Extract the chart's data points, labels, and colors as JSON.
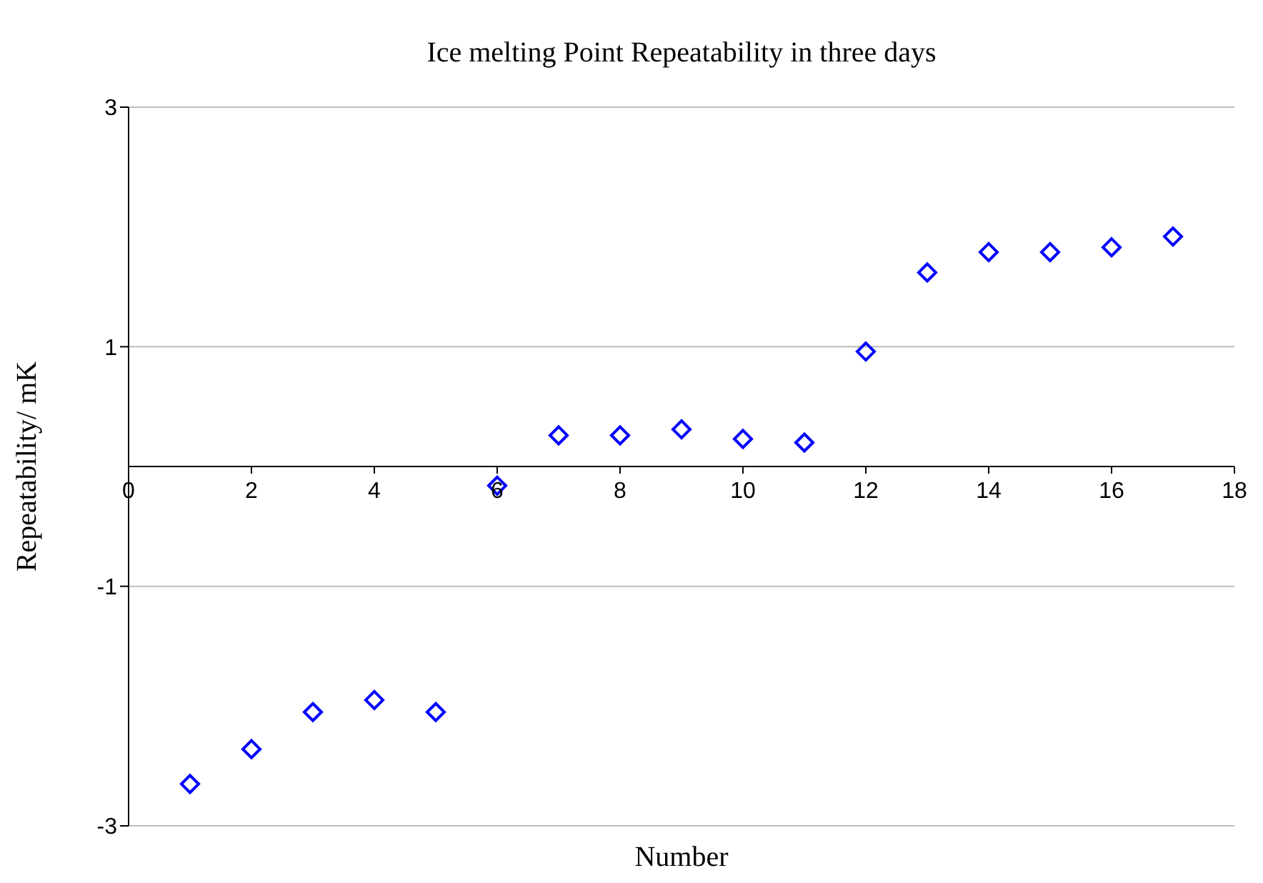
{
  "chart_data": {
    "type": "scatter",
    "title": "Ice melting Point Repeatability in three days",
    "xlabel": "Number",
    "ylabel": "Repeatability/ mK",
    "x": [
      1,
      2,
      3,
      4,
      5,
      6,
      7,
      8,
      9,
      10,
      11,
      12,
      13,
      14,
      15,
      16,
      17
    ],
    "series": [
      {
        "color": "#0000ff",
        "values": [
          -2.65,
          -2.36,
          -2.05,
          -1.95,
          -2.05,
          -0.16,
          0.26,
          0.26,
          0.31,
          0.23,
          0.2,
          0.96,
          1.62,
          1.79,
          1.79,
          1.83,
          1.92
        ]
      }
    ],
    "xlim": [
      0,
      18
    ],
    "xticks": [
      0,
      2,
      4,
      6,
      8,
      10,
      12,
      14,
      16,
      18
    ],
    "ylim": [
      -3,
      3
    ],
    "yticks": [
      -3,
      -1,
      1,
      3
    ],
    "grid": "y",
    "marker": "diamond",
    "legend": false
  }
}
